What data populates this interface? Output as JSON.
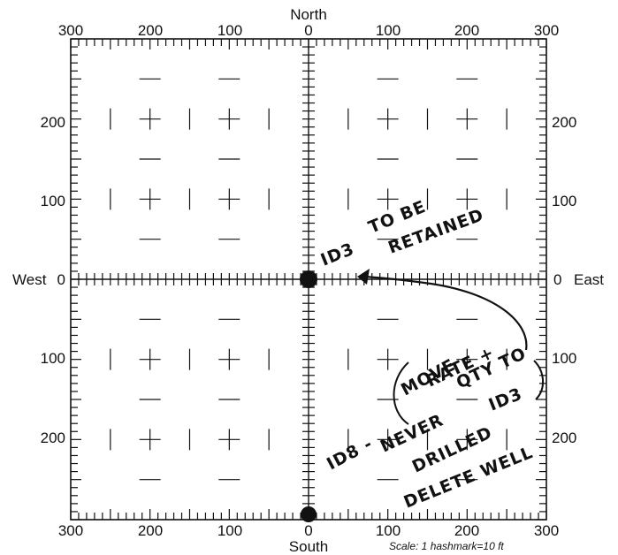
{
  "directions": {
    "north": "North",
    "south": "South",
    "west": "West",
    "east": "East"
  },
  "top_ticks": [
    "300",
    "200",
    "100",
    "0",
    "100",
    "200",
    "300"
  ],
  "bottom_ticks": [
    "300",
    "200",
    "100",
    "0",
    "100",
    "200",
    "300"
  ],
  "left_ticks": [
    "200",
    "100",
    "0",
    "100",
    "200"
  ],
  "right_ticks": [
    "200",
    "100",
    "0",
    "100",
    "200"
  ],
  "scale_note": "Scale: 1 hashmark=10 ft",
  "wells": [
    {
      "name": "ID3",
      "east_ft": 0,
      "north_ft": 0
    },
    {
      "name": "ID8",
      "east_ft": 0,
      "south_ft": 300
    }
  ],
  "annotations": {
    "id3": "ID3",
    "to_be": "TO BE",
    "retained": "RETAINED",
    "move": "MOVE",
    "rate": "RATE +",
    "qty_to": "QTY TO",
    "id3b": "ID3",
    "id8": "ID8 -",
    "never": "NEVER",
    "drilled": "DRILLED",
    "delete_well": "DELETE WELL"
  },
  "colors": {
    "ink": "#111111",
    "background": "#ffffff"
  }
}
